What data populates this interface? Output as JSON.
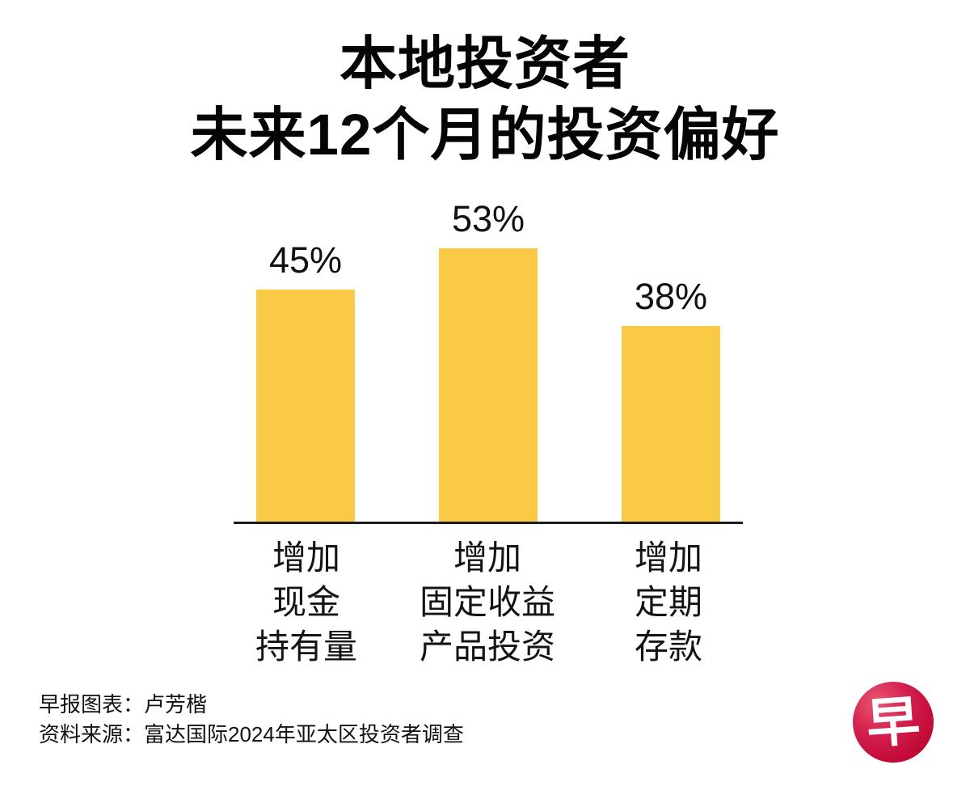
{
  "title": {
    "line1": "本地投资者",
    "line2": "未来12个月的投资偏好"
  },
  "chart_data": {
    "type": "bar",
    "title": "本地投资者 未来12个月的投资偏好",
    "categories": [
      "增加现金持有量",
      "增加固定收益产品投资",
      "增加定期存款"
    ],
    "categories_lines": [
      [
        "增加",
        "现金",
        "持有量"
      ],
      [
        "增加",
        "固定收益",
        "产品投资"
      ],
      [
        "增加",
        "定期",
        "存款"
      ]
    ],
    "values": [
      45,
      53,
      38
    ],
    "value_labels": [
      "45%",
      "53%",
      "38%"
    ],
    "unit": "%",
    "xlabel": "",
    "ylabel": "",
    "ylim": [
      0,
      60
    ],
    "grid": false,
    "legend": "none",
    "bar_color": "#FAC945",
    "axis_color": "#1c1c1c",
    "text_color": "#111111"
  },
  "footer": {
    "credit": "早报图表：卢芳楷",
    "source": "资料来源：富达国际2024年亚太区投资者调查"
  },
  "logo": {
    "char": "早",
    "name": "zaobao-logo",
    "color": "#c20b36"
  }
}
